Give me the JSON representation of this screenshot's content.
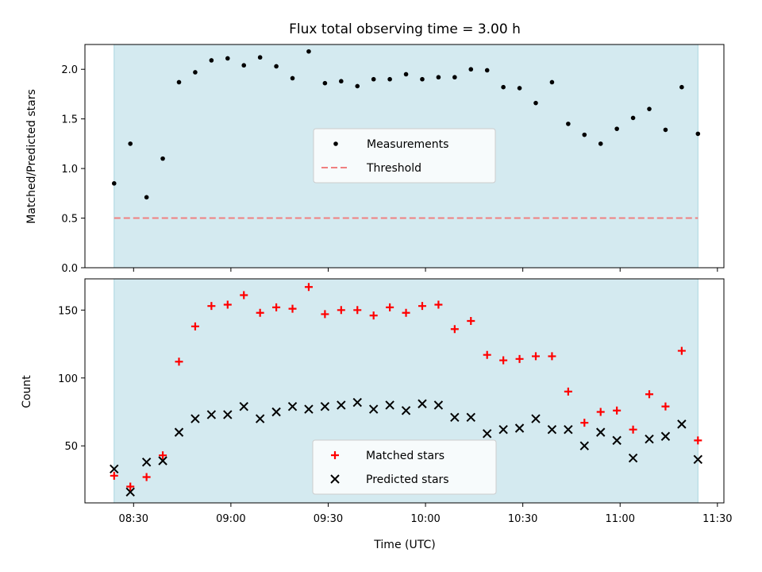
{
  "chart_data": [
    {
      "type": "scatter",
      "title": "Flux total observing time = 3.00 h",
      "xlabel": "",
      "ylabel": "Matched/Predicted stars",
      "ylim": [
        0,
        2.25
      ],
      "yticks": [
        "0.0",
        "0.5",
        "1.0",
        "1.5",
        "2.0"
      ],
      "xlim": [
        "08:15",
        "11:32"
      ],
      "shaded_span": [
        "08:24",
        "11:24"
      ],
      "shade_color": "#d4eaf0",
      "legend_position": "center",
      "series": [
        {
          "name": "Measurements",
          "marker": "dot",
          "color": "#000000",
          "x": [
            "08:24",
            "08:29",
            "08:34",
            "08:39",
            "08:44",
            "08:49",
            "08:54",
            "08:59",
            "09:04",
            "09:09",
            "09:14",
            "09:19",
            "09:24",
            "09:29",
            "09:34",
            "09:39",
            "09:44",
            "09:49",
            "09:54",
            "09:59",
            "10:04",
            "10:09",
            "10:14",
            "10:19",
            "10:24",
            "10:29",
            "10:34",
            "10:39",
            "10:44",
            "10:49",
            "10:54",
            "10:59",
            "11:04",
            "11:09",
            "11:14",
            "11:19",
            "11:24"
          ],
          "y": [
            0.85,
            1.25,
            0.71,
            1.1,
            1.87,
            1.97,
            2.09,
            2.11,
            2.04,
            2.12,
            2.03,
            1.91,
            2.18,
            1.86,
            1.88,
            1.83,
            1.9,
            1.9,
            1.95,
            1.9,
            1.92,
            1.92,
            2.0,
            1.99,
            1.82,
            1.81,
            1.66,
            1.87,
            1.45,
            1.34,
            1.25,
            1.4,
            1.51,
            1.6,
            1.39,
            1.82,
            1.35
          ]
        },
        {
          "name": "Threshold",
          "marker": "dashed-line",
          "color": "#f08080",
          "value": 0.5
        }
      ]
    },
    {
      "type": "scatter",
      "title": "",
      "xlabel": "Time (UTC)",
      "ylabel": "Count",
      "ylim": [
        8,
        173
      ],
      "yticks": [
        "50",
        "100",
        "150"
      ],
      "xticks": [
        "08:30",
        "09:00",
        "09:30",
        "10:00",
        "10:30",
        "11:00",
        "11:30"
      ],
      "xlim": [
        "08:15",
        "11:32"
      ],
      "shaded_span": [
        "08:24",
        "11:24"
      ],
      "shade_color": "#d4eaf0",
      "legend_position": "lower center",
      "series": [
        {
          "name": "Matched stars",
          "marker": "plus",
          "color": "#ff0000",
          "x": [
            "08:24",
            "08:29",
            "08:34",
            "08:39",
            "08:44",
            "08:49",
            "08:54",
            "08:59",
            "09:04",
            "09:09",
            "09:14",
            "09:19",
            "09:24",
            "09:29",
            "09:34",
            "09:39",
            "09:44",
            "09:49",
            "09:54",
            "09:59",
            "10:04",
            "10:09",
            "10:14",
            "10:19",
            "10:24",
            "10:29",
            "10:34",
            "10:39",
            "10:44",
            "10:49",
            "10:54",
            "10:59",
            "11:04",
            "11:09",
            "11:14",
            "11:19",
            "11:24"
          ],
          "y": [
            28,
            20,
            27,
            43,
            112,
            138,
            153,
            154,
            161,
            148,
            152,
            151,
            167,
            147,
            150,
            150,
            146,
            152,
            148,
            153,
            154,
            136,
            142,
            117,
            113,
            114,
            116,
            116,
            90,
            67,
            75,
            76,
            62,
            88,
            79,
            120,
            54
          ]
        },
        {
          "name": "Predicted stars",
          "marker": "x",
          "color": "#000000",
          "x": [
            "08:24",
            "08:29",
            "08:34",
            "08:39",
            "08:44",
            "08:49",
            "08:54",
            "08:59",
            "09:04",
            "09:09",
            "09:14",
            "09:19",
            "09:24",
            "09:29",
            "09:34",
            "09:39",
            "09:44",
            "09:49",
            "09:54",
            "09:59",
            "10:04",
            "10:09",
            "10:14",
            "10:19",
            "10:24",
            "10:29",
            "10:34",
            "10:39",
            "10:44",
            "10:49",
            "10:54",
            "10:59",
            "11:04",
            "11:09",
            "11:14",
            "11:19",
            "11:24"
          ],
          "y": [
            33,
            16,
            38,
            39,
            60,
            70,
            73,
            73,
            79,
            70,
            75,
            79,
            77,
            79,
            80,
            82,
            77,
            80,
            76,
            81,
            80,
            71,
            71,
            59,
            62,
            63,
            70,
            62,
            62,
            50,
            60,
            54,
            41,
            55,
            57,
            66,
            40
          ]
        }
      ]
    }
  ]
}
